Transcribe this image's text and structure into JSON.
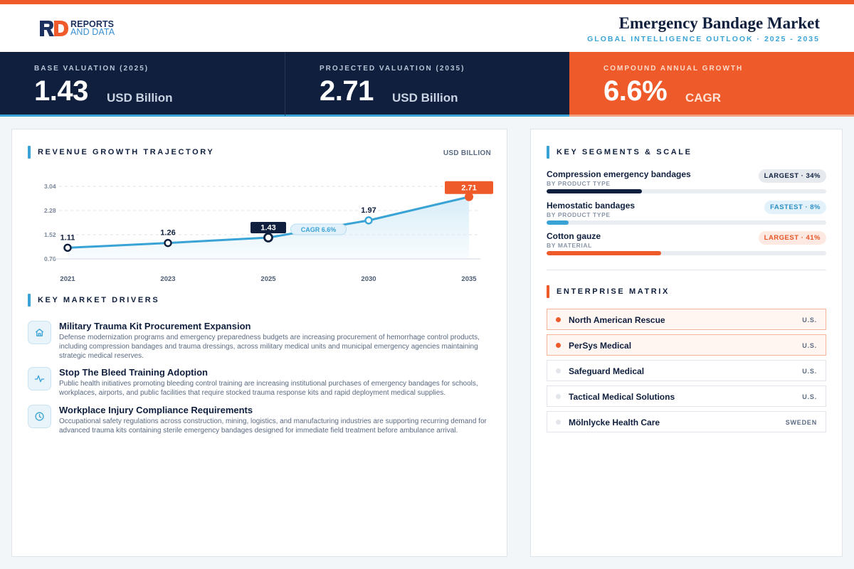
{
  "brand": {
    "line1": "REPORTS",
    "line2": "AND DATA"
  },
  "header": {
    "title": "Emergency Bandage Market",
    "subtitle": "GLOBAL INTELLIGENCE OUTLOOK  ·  2025 - 2035"
  },
  "kpis": [
    {
      "label": "BASE VALUATION (2025)",
      "value": "1.43",
      "unit": "USD Billion"
    },
    {
      "label": "PROJECTED VALUATION (2035)",
      "value": "2.71",
      "unit": "USD Billion"
    },
    {
      "label": "COMPOUND ANNUAL GROWTH",
      "value": "6.6%",
      "unit": "CAGR"
    }
  ],
  "revenue": {
    "title": "REVENUE GROWTH TRAJECTORY",
    "unit": "USD BILLION"
  },
  "chart_data": {
    "type": "area",
    "x": [
      "2021",
      "2023",
      "2025",
      "2030",
      "2035"
    ],
    "values": [
      1.11,
      1.26,
      1.43,
      1.97,
      2.71
    ],
    "data_labels": [
      "1.11",
      "1.26",
      "1.43",
      "1.97",
      "2.71"
    ],
    "yticks": [
      "3.04",
      "2.28",
      "1.52",
      "0.76"
    ],
    "ylim": [
      0.76,
      3.04
    ],
    "grid": true,
    "annotation": "CAGR 6.6%",
    "highlight": {
      "2025": "#0f1f3d",
      "2035": "#ee5a2a"
    },
    "colors": {
      "line": "#3aa3d6",
      "area": "#d6ecf8"
    }
  },
  "drivers": {
    "title": "KEY MARKET DRIVERS",
    "items": [
      {
        "icon": "home-icon",
        "title": "Military Trauma Kit Procurement Expansion",
        "desc": "Defense modernization programs and emergency preparedness budgets are increasing procurement of hemorrhage control products, including compression bandages and trauma dressings, across military medical units and municipal emergency agencies maintaining strategic medical reserves."
      },
      {
        "icon": "pulse-icon",
        "title": "Stop The Bleed Training Adoption",
        "desc": "Public health initiatives promoting bleeding control training are increasing institutional purchases of emergency bandages for schools, workplaces, airports, and public facilities that require stocked trauma response kits and rapid deployment medical supplies."
      },
      {
        "icon": "clock-icon",
        "title": "Workplace Injury Compliance Requirements",
        "desc": "Occupational safety regulations across construction, mining, logistics, and manufacturing industries are supporting recurring demand for advanced trauma kits containing sterile emergency bandages designed for immediate field treatment before ambulance arrival."
      }
    ]
  },
  "segments": {
    "title": "KEY SEGMENTS & SCALE",
    "items": [
      {
        "name": "Compression emergency bandages",
        "sub": "BY PRODUCT TYPE",
        "badge": "LARGEST · 34%",
        "share": 0.34,
        "color": "#0f1f3d"
      },
      {
        "name": "Hemostatic bandages",
        "sub": "BY PRODUCT TYPE",
        "badge": "FASTEST · 8%",
        "share": 0.08,
        "color": "#3aa3d6"
      },
      {
        "name": "Cotton gauze",
        "sub": "BY MATERIAL",
        "badge": "LARGEST · 41%",
        "share": 0.41,
        "color": "#ee5a2a"
      }
    ]
  },
  "enterprise": {
    "title": "ENTERPRISE MATRIX",
    "items": [
      {
        "name": "North American Rescue",
        "country": "U.S.",
        "highlight": true
      },
      {
        "name": "PerSys Medical",
        "country": "U.S.",
        "highlight": true
      },
      {
        "name": "Safeguard Medical",
        "country": "U.S.",
        "highlight": false
      },
      {
        "name": "Tactical Medical Solutions",
        "country": "U.S.",
        "highlight": false
      },
      {
        "name": "Mölnlycke Health Care",
        "country": "SWEDEN",
        "highlight": false
      }
    ]
  }
}
